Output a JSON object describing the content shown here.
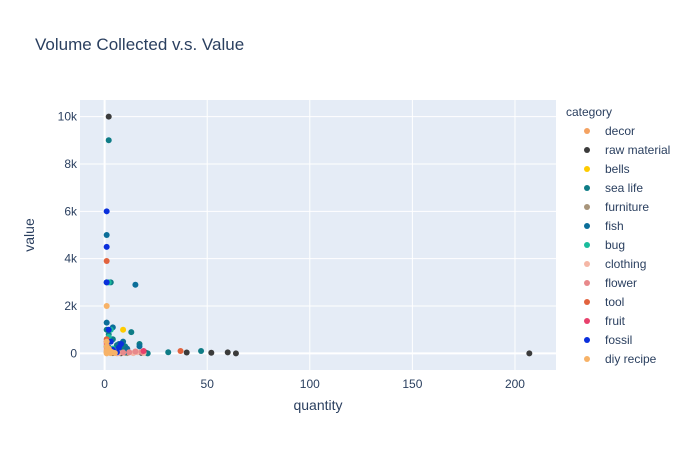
{
  "chart_data": {
    "type": "scatter",
    "title": "Volume Collected v.s. Value",
    "xlabel": "quantity",
    "ylabel": "value",
    "xlim": [
      -12,
      220
    ],
    "ylim": [
      -700,
      10700
    ],
    "x_ticks": [
      0,
      50,
      100,
      150,
      200
    ],
    "y_ticks": [
      0,
      2000,
      4000,
      6000,
      8000,
      10000
    ],
    "x_tick_labels": [
      "0",
      "50",
      "100",
      "150",
      "200"
    ],
    "y_tick_labels": [
      "0",
      "2k",
      "4k",
      "6k",
      "8k",
      "10k"
    ],
    "grid": true,
    "plot_background": "#e5ecf6",
    "legend": {
      "title": "category",
      "placement": "right"
    },
    "series": [
      {
        "name": "decor",
        "color": "#f4a261",
        "points": [
          [
            1,
            150
          ],
          [
            2,
            60
          ],
          [
            3,
            20
          ],
          [
            5,
            30
          ],
          [
            1,
            40
          ],
          [
            7,
            10
          ],
          [
            10,
            25
          ]
        ]
      },
      {
        "name": "raw material",
        "color": "#3b3b3b",
        "points": [
          [
            2,
            10000
          ],
          [
            207,
            0
          ],
          [
            40,
            40
          ],
          [
            52,
            30
          ],
          [
            60,
            45
          ],
          [
            64,
            0
          ],
          [
            4,
            15
          ],
          [
            8,
            5
          ],
          [
            18,
            25
          ],
          [
            20,
            35
          ]
        ]
      },
      {
        "name": "bells",
        "color": "#fecb00",
        "points": [
          [
            9,
            1000
          ],
          [
            3,
            100
          ]
        ]
      },
      {
        "name": "sea life",
        "color": "#0e7c86",
        "points": [
          [
            2,
            9000
          ],
          [
            3,
            3000
          ],
          [
            1,
            1000
          ],
          [
            2,
            800
          ],
          [
            6,
            350
          ],
          [
            10,
            300
          ],
          [
            13,
            900
          ],
          [
            17,
            400
          ],
          [
            21,
            0
          ],
          [
            31,
            50
          ],
          [
            47,
            100
          ],
          [
            4,
            600
          ],
          [
            8,
            200
          ]
        ]
      },
      {
        "name": "furniture",
        "color": "#a8957b",
        "points": [
          [
            1,
            500
          ],
          [
            1,
            300
          ],
          [
            2,
            150
          ],
          [
            1,
            60
          ],
          [
            3,
            20
          ],
          [
            4,
            90
          ],
          [
            6,
            40
          ],
          [
            11,
            10
          ]
        ]
      },
      {
        "name": "fish",
        "color": "#0b6e99",
        "points": [
          [
            1,
            5000
          ],
          [
            1,
            3000
          ],
          [
            15,
            2900
          ],
          [
            1,
            1300
          ],
          [
            4,
            1100
          ],
          [
            7,
            400
          ],
          [
            9,
            500
          ],
          [
            5,
            200
          ],
          [
            11,
            200
          ],
          [
            17,
            300
          ],
          [
            2,
            250
          ],
          [
            6,
            100
          ],
          [
            10,
            50
          ]
        ]
      },
      {
        "name": "bug",
        "color": "#1abc9c",
        "points": [
          [
            2,
            3000
          ],
          [
            3,
            1000
          ],
          [
            2,
            700
          ],
          [
            1,
            300
          ],
          [
            4,
            200
          ]
        ]
      },
      {
        "name": "clothing",
        "color": "#f5b7a6",
        "points": [
          [
            1,
            100
          ],
          [
            3,
            50
          ],
          [
            5,
            60
          ],
          [
            7,
            20
          ],
          [
            9,
            30
          ],
          [
            12,
            40
          ],
          [
            14,
            10
          ],
          [
            16,
            50
          ],
          [
            19,
            20
          ],
          [
            6,
            0
          ]
        ]
      },
      {
        "name": "flower",
        "color": "#e8898b",
        "points": [
          [
            1,
            240
          ],
          [
            3,
            80
          ],
          [
            6,
            80
          ],
          [
            9,
            40
          ],
          [
            12,
            50
          ],
          [
            15,
            80
          ],
          [
            18,
            60
          ]
        ]
      },
      {
        "name": "tool",
        "color": "#e2633e",
        "points": [
          [
            1,
            3900
          ],
          [
            1,
            600
          ],
          [
            37,
            100
          ]
        ]
      },
      {
        "name": "fruit",
        "color": "#e8416c",
        "points": [
          [
            1,
            500
          ],
          [
            1,
            400
          ],
          [
            19,
            100
          ]
        ]
      },
      {
        "name": "fossil",
        "color": "#0a2fdc",
        "points": [
          [
            1,
            6000
          ],
          [
            1,
            4500
          ],
          [
            1,
            3000
          ],
          [
            2,
            1000
          ],
          [
            3,
            500
          ],
          [
            7,
            250
          ],
          [
            8,
            400
          ],
          [
            4,
            150
          ],
          [
            6,
            50
          ]
        ]
      },
      {
        "name": "diy recipe",
        "color": "#f7b267",
        "points": [
          [
            1,
            2000
          ],
          [
            1,
            500
          ],
          [
            1,
            300
          ],
          [
            2,
            200
          ],
          [
            2,
            150
          ],
          [
            1,
            100
          ],
          [
            3,
            80
          ],
          [
            2,
            50
          ],
          [
            4,
            40
          ],
          [
            5,
            20
          ],
          [
            1,
            0
          ],
          [
            3,
            10
          ]
        ]
      }
    ]
  }
}
